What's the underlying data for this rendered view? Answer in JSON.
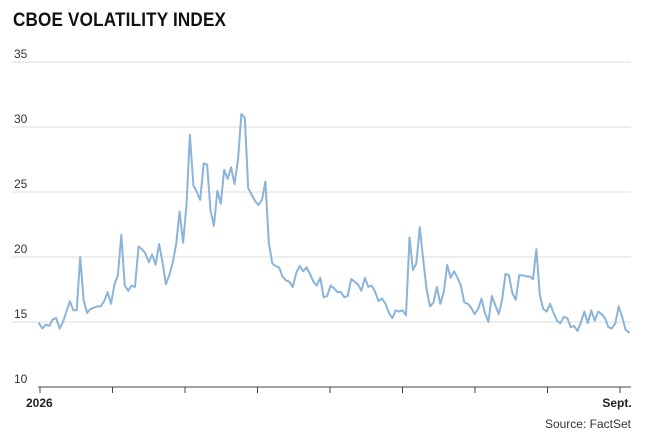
{
  "chart_data": {
    "type": "line",
    "title": "CBOE VOLATILITY INDEX",
    "source": "Source: FactSet",
    "xlabel": "",
    "ylabel": "",
    "ylim": [
      10,
      35
    ],
    "y_ticks": [
      10,
      15,
      20,
      25,
      30,
      35
    ],
    "x_tick_labels": [
      "2026",
      "Sept."
    ],
    "grid": true,
    "series": [
      {
        "color": "#8ab4d9",
        "values": [
          14.9,
          14.5,
          14.8,
          14.7,
          15.2,
          15.3,
          14.5,
          15.0,
          15.8,
          16.6,
          15.9,
          15.9,
          20.0,
          16.7,
          15.7,
          16.0,
          16.1,
          16.2,
          16.2,
          16.6,
          17.3,
          16.4,
          17.9,
          18.6,
          21.7,
          17.8,
          17.4,
          17.8,
          17.7,
          20.8,
          20.6,
          20.3,
          19.6,
          20.2,
          19.4,
          21.0,
          19.6,
          17.9,
          18.6,
          19.6,
          21.0,
          23.5,
          21.1,
          24.0,
          29.4,
          25.5,
          25.0,
          24.4,
          27.2,
          27.1,
          23.6,
          22.4,
          25.1,
          24.1,
          26.7,
          26.0,
          26.9,
          25.6,
          27.5,
          31.0,
          30.7,
          25.3,
          24.8,
          24.3,
          24.0,
          24.4,
          25.8,
          21.1,
          19.5,
          19.3,
          19.2,
          18.5,
          18.2,
          18.1,
          17.7,
          18.8,
          19.3,
          18.9,
          19.2,
          18.7,
          18.1,
          17.8,
          18.4,
          16.9,
          17.0,
          17.8,
          17.6,
          17.3,
          17.3,
          16.9,
          17.0,
          18.3,
          18.1,
          17.9,
          17.4,
          18.4,
          17.7,
          17.8,
          17.3,
          16.6,
          16.8,
          16.4,
          15.7,
          15.3,
          15.9,
          15.8,
          15.9,
          15.5,
          21.5,
          19.0,
          19.5,
          22.3,
          19.8,
          17.5,
          16.2,
          16.5,
          17.7,
          16.4,
          17.3,
          19.4,
          18.4,
          18.9,
          18.4,
          17.8,
          16.5,
          16.4,
          16.1,
          15.6,
          16.0,
          16.8,
          15.7,
          15.0,
          17.0,
          16.3,
          15.6,
          16.7,
          18.7,
          18.6,
          17.2,
          16.7,
          18.6,
          18.6,
          18.5,
          18.5,
          18.3,
          20.6,
          17.1,
          16.0,
          15.8,
          16.4,
          15.7,
          15.1,
          14.9,
          15.4,
          15.3,
          14.6,
          14.7,
          14.3,
          15.0,
          15.8,
          14.9,
          15.9,
          15.1,
          15.8,
          15.6,
          15.3,
          14.6,
          14.5,
          14.9,
          16.2,
          15.4,
          14.4,
          14.2
        ]
      }
    ]
  }
}
